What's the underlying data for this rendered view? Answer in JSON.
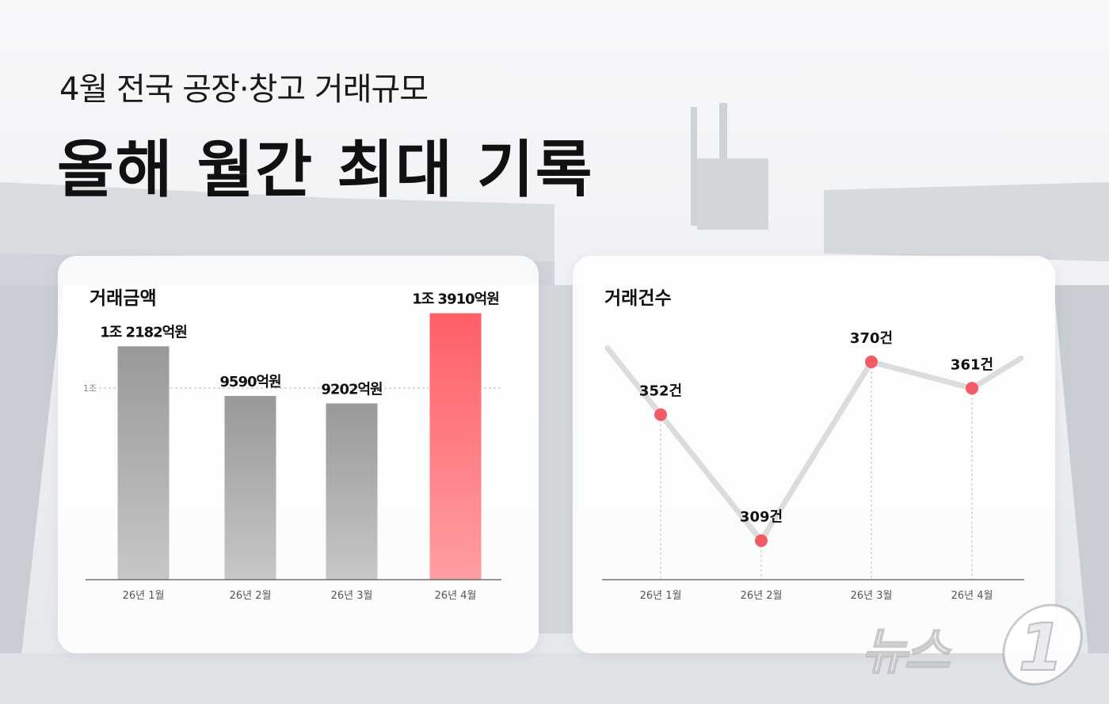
{
  "header": {
    "subtitle": "4월 전국 공장·창고 거래규모",
    "headline": "올해 월간 최대 기록"
  },
  "chart_data": [
    {
      "type": "bar",
      "title": "거래금액",
      "categories": [
        "26년 1월",
        "26년 2월",
        "26년 3월",
        "26년 4월"
      ],
      "values": [
        12182,
        9590,
        9202,
        13910
      ],
      "value_labels": [
        "1조 2182억원",
        "9590억원",
        "9202억원",
        "1조 3910억원"
      ],
      "reference_line": {
        "value": 10000,
        "label": "1조"
      },
      "ylim": [
        0,
        16000
      ],
      "grid": false,
      "colors": {
        "default": "#a0a0a0",
        "highlight": "#ff6b70"
      }
    },
    {
      "type": "line",
      "title": "거래건수",
      "categories": [
        "26년 1월",
        "26년 2월",
        "26년 3월",
        "26년 4월"
      ],
      "values": [
        352,
        309,
        370,
        361
      ],
      "value_labels": [
        "352건",
        "309건",
        "370건",
        "361건"
      ],
      "ylim": [
        290,
        390
      ],
      "grid": false,
      "colors": {
        "line": "#dddddd",
        "point": "#f25b63"
      }
    }
  ],
  "logo": {
    "text": "뉴스",
    "mark": "1"
  }
}
